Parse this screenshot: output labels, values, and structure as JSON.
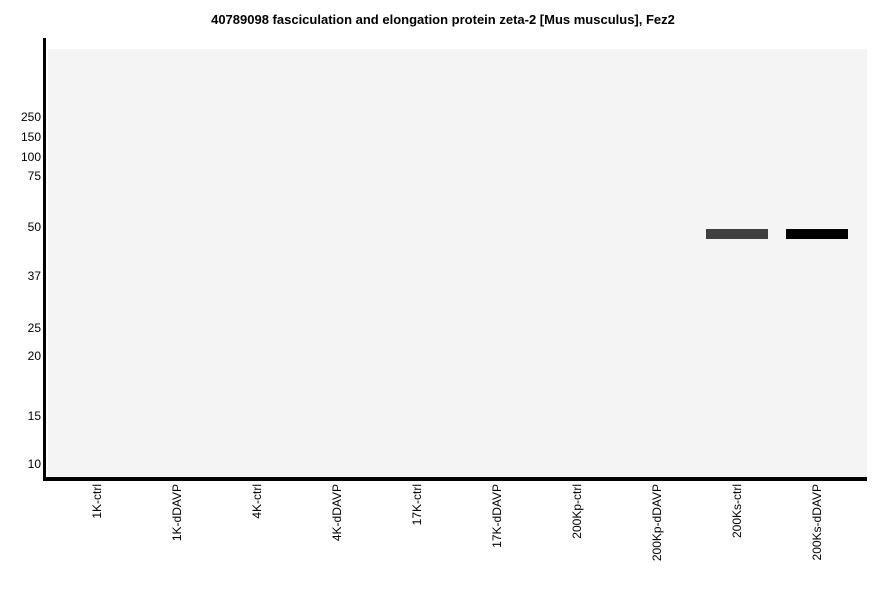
{
  "page": {
    "background": "#ffffff"
  },
  "chart_data": {
    "type": "western-blot",
    "title": "40789098 fasciculation and elongation protein zeta-2 [Mus musculus], Fez2",
    "xlabel": "",
    "ylabel": "",
    "legend": "none",
    "grid": false,
    "x_tick_rotation": 90,
    "lanes": [
      "1K-ctrl",
      "1K-dDAVP",
      "4K-ctrl",
      "4K-dDAVP",
      "17K-ctrl",
      "17K-dDAVP",
      "200Kp-ctrl",
      "200Kp-dDAVP",
      "200Ks-ctrl",
      "200Ks-dDAVP"
    ],
    "mw_markers": [
      {
        "kda": 250,
        "y_frac": 0.159
      },
      {
        "kda": 150,
        "y_frac": 0.206
      },
      {
        "kda": 100,
        "y_frac": 0.252
      },
      {
        "kda": 75,
        "y_frac": 0.297
      },
      {
        "kda": 50,
        "y_frac": 0.416
      },
      {
        "kda": 37,
        "y_frac": 0.53
      },
      {
        "kda": 25,
        "y_frac": 0.652
      },
      {
        "kda": 20,
        "y_frac": 0.717
      },
      {
        "kda": 15,
        "y_frac": 0.858
      },
      {
        "kda": 10,
        "y_frac": 0.97
      }
    ],
    "bands": [
      {
        "lane": "200Ks-ctrl",
        "lane_index": 8,
        "approx_kda": 48,
        "y_frac": 0.432,
        "color": "#404040",
        "relative_intensity": 0.75
      },
      {
        "lane": "200Ks-dDAVP",
        "lane_index": 9,
        "approx_kda": 48,
        "y_frac": 0.432,
        "color": "#000000",
        "relative_intensity": 1.0
      }
    ],
    "layout": {
      "plot_bg": "#f4f4f5",
      "axis_color": "#000000",
      "band_width_frac_of_lane": 0.775
    }
  }
}
